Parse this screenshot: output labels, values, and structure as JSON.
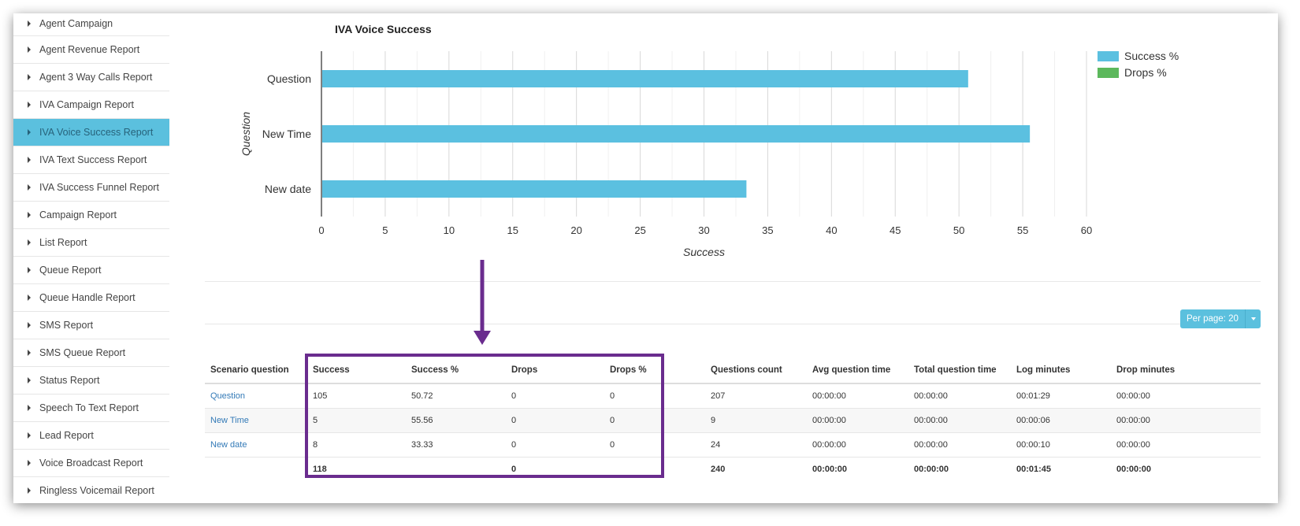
{
  "sidebar": {
    "items": [
      {
        "label": "Agent Campaign"
      },
      {
        "label": "Agent Revenue Report"
      },
      {
        "label": "Agent 3 Way Calls Report"
      },
      {
        "label": "IVA Campaign Report"
      },
      {
        "label": "IVA Voice Success Report",
        "active": true
      },
      {
        "label": "IVA Text Success Report"
      },
      {
        "label": "IVA Success Funnel Report"
      },
      {
        "label": "Campaign Report"
      },
      {
        "label": "List Report"
      },
      {
        "label": "Queue Report"
      },
      {
        "label": "Queue Handle Report"
      },
      {
        "label": "SMS Report"
      },
      {
        "label": "SMS Queue Report"
      },
      {
        "label": "Status Report"
      },
      {
        "label": "Speech To Text Report"
      },
      {
        "label": "Lead Report"
      },
      {
        "label": "Voice Broadcast Report"
      },
      {
        "label": "Ringless Voicemail Report"
      }
    ]
  },
  "chart_data": {
    "type": "bar",
    "orientation": "horizontal",
    "title": "IVA Voice Success",
    "xlabel": "Success",
    "ylabel": "Question",
    "categories": [
      "Question",
      "New Time",
      "New date"
    ],
    "series": [
      {
        "name": "Success %",
        "values": [
          50.72,
          55.56,
          33.33
        ],
        "color": "#5bc0e0"
      },
      {
        "name": "Drops %",
        "values": [
          0,
          0,
          0
        ],
        "color": "#5cb85c"
      }
    ],
    "xlim": [
      0,
      60
    ],
    "xticks": [
      0,
      5,
      10,
      15,
      20,
      25,
      30,
      35,
      40,
      45,
      50,
      55,
      60
    ],
    "grid": true,
    "legend": "top-right"
  },
  "toolbar": {
    "per_page_label": "Per page: 20"
  },
  "table": {
    "headers": [
      "Scenario question",
      "Success",
      "Success %",
      "Drops",
      "Drops %",
      "",
      "Questions count",
      "Avg question time",
      "Total question time",
      "Log minutes",
      "Drop minutes"
    ],
    "rows": [
      [
        "Question",
        "105",
        "50.72",
        "0",
        "0",
        "",
        "207",
        "00:00:00",
        "00:00:00",
        "00:01:29",
        "00:00:00"
      ],
      [
        "New Time",
        "5",
        "55.56",
        "0",
        "0",
        "",
        "9",
        "00:00:00",
        "00:00:00",
        "00:00:06",
        "00:00:00"
      ],
      [
        "New date",
        "8",
        "33.33",
        "0",
        "0",
        "",
        "24",
        "00:00:00",
        "00:00:00",
        "00:00:10",
        "00:00:00"
      ]
    ],
    "totals": [
      "",
      "118",
      "",
      "0",
      "",
      "",
      "240",
      "00:00:00",
      "00:00:00",
      "00:01:45",
      "00:00:00"
    ]
  },
  "colors": {
    "accent": "#5bc0de",
    "annotation": "#6a2c8e",
    "link": "#337ab7"
  }
}
